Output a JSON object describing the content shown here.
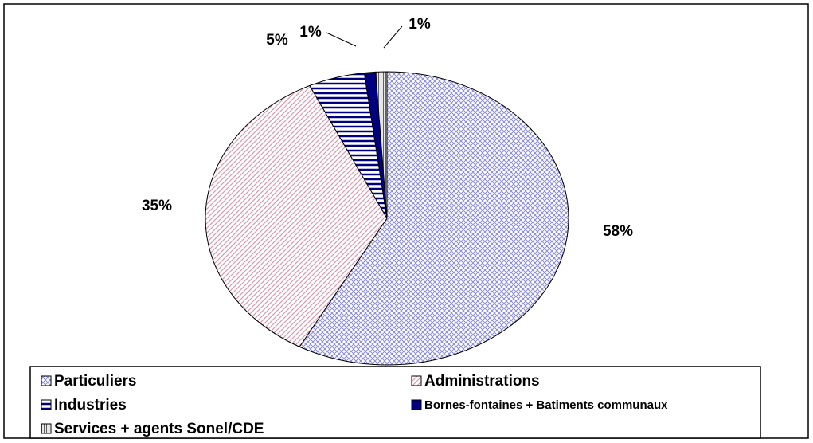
{
  "chart_data": {
    "type": "pie",
    "categories": [
      "Particuliers",
      "Administrations",
      "Industries",
      "Bornes-fontaines + Batiments communaux",
      "Services + agents Sonel/CDE"
    ],
    "values": [
      58,
      35,
      5,
      1,
      1
    ],
    "value_labels": [
      "58%",
      "35%",
      "5%",
      "1%",
      "1%"
    ],
    "colors": [
      "#8a8ad8",
      "#d89ab0",
      "#000080",
      "#000080",
      "#606060"
    ],
    "legend": "bottom"
  }
}
